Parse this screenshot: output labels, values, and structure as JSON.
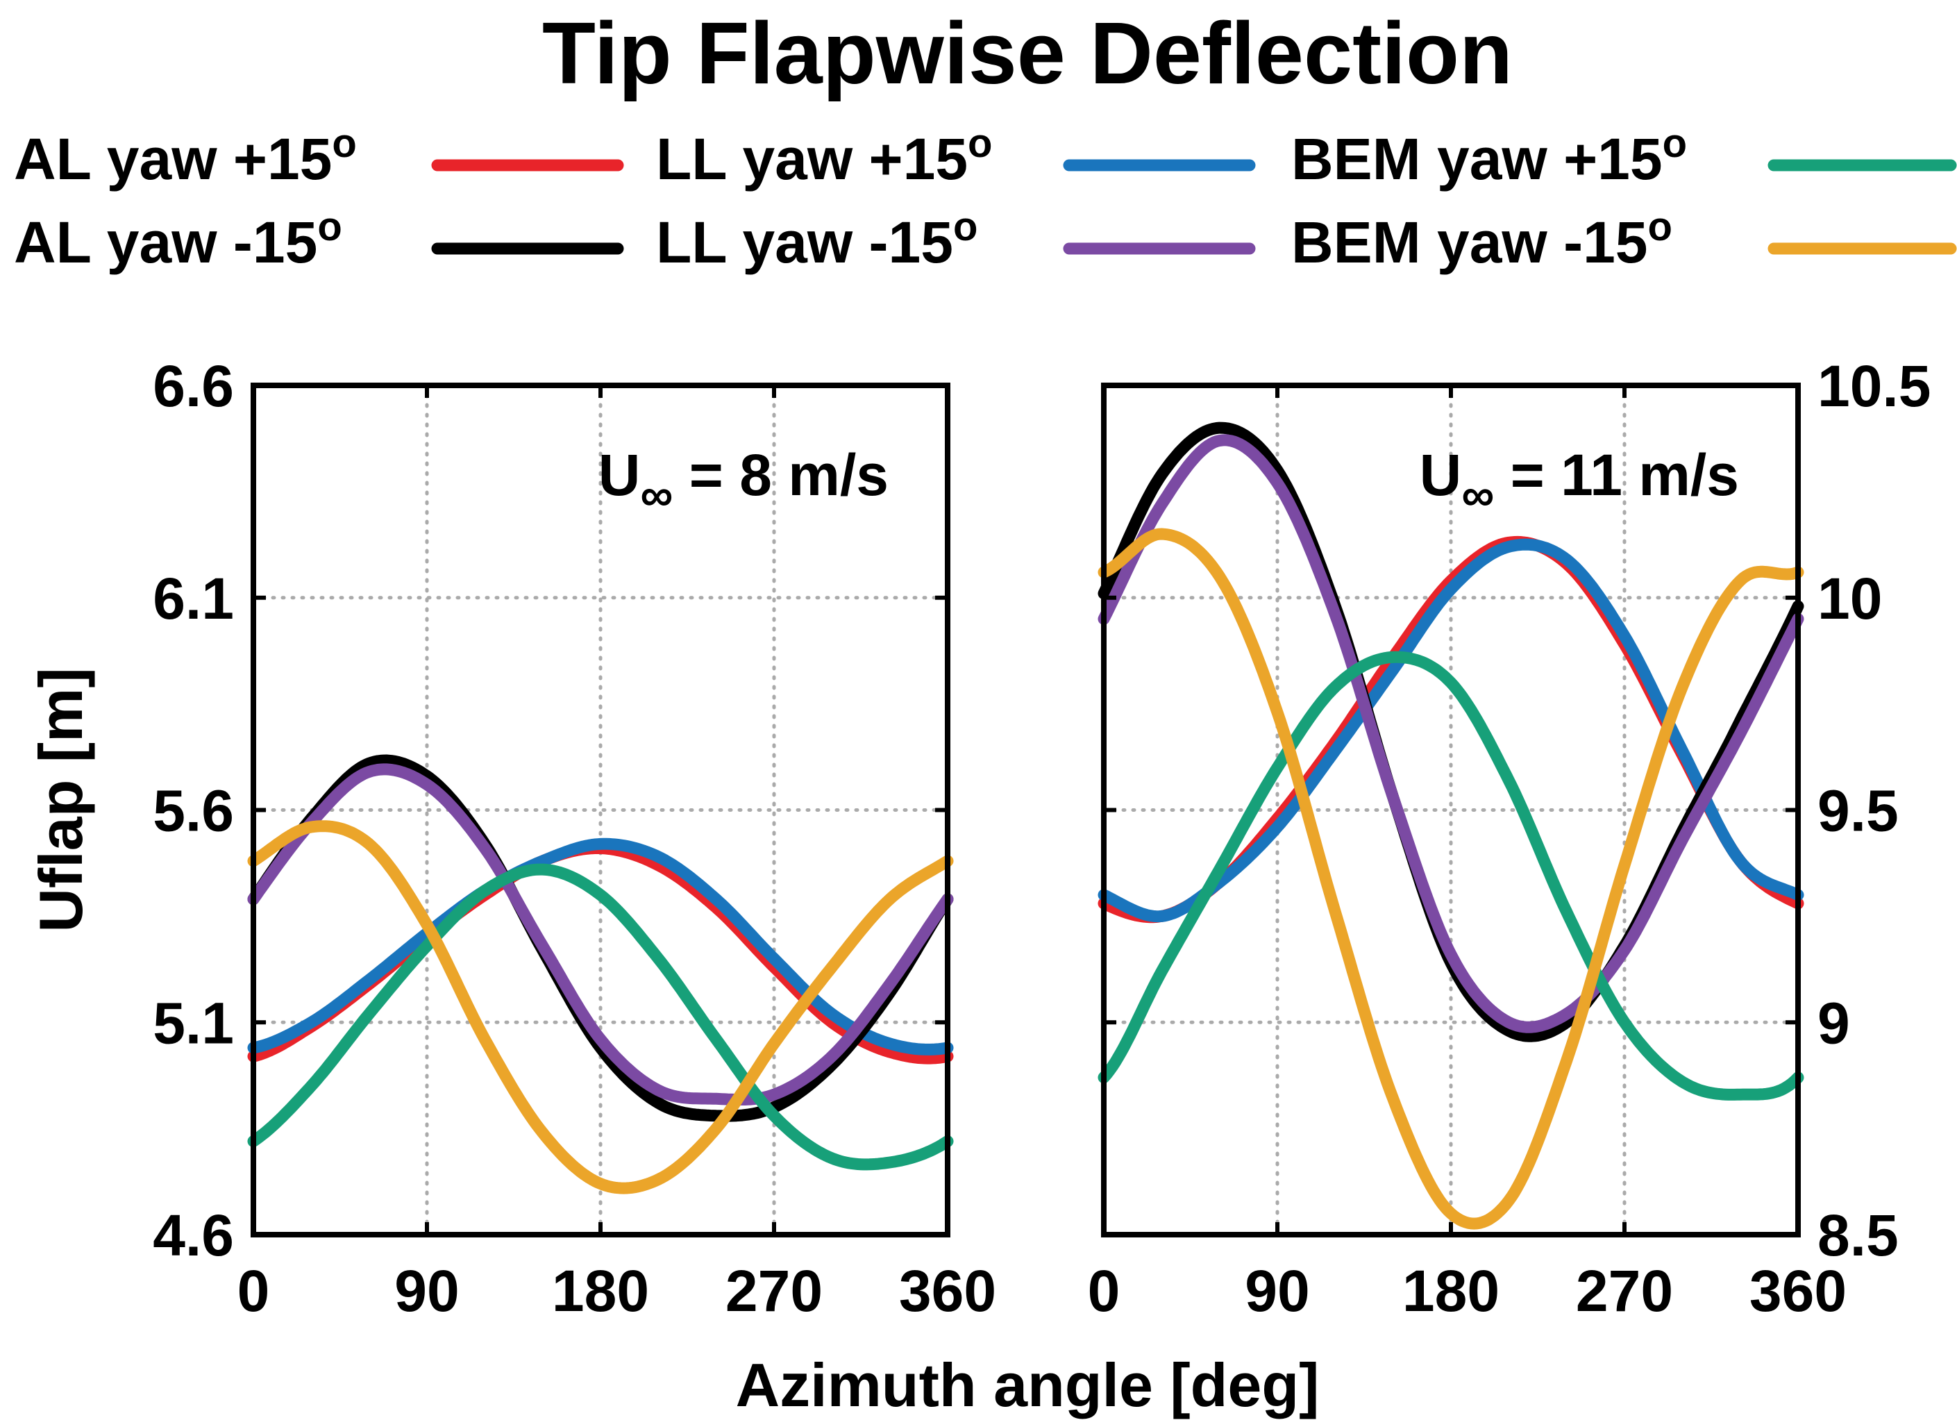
{
  "title": "Tip Flapwise Deflection",
  "xlabel": "Azimuth angle [deg]",
  "ylabel": "Uflap [m]",
  "legend": {
    "placement": "top",
    "entries": [
      {
        "key": "al_pos",
        "label": "AL yaw +15",
        "sup": "o",
        "color": "#e8242a"
      },
      {
        "key": "al_neg",
        "label": "AL yaw -15",
        "sup": "o",
        "color": "#000000"
      },
      {
        "key": "ll_pos",
        "label": "LL yaw +15",
        "sup": "o",
        "color": "#1a75bd"
      },
      {
        "key": "ll_neg",
        "label": "LL yaw -15",
        "sup": "o",
        "color": "#7b4aa3"
      },
      {
        "key": "bem_pos",
        "label": "BEM yaw +15",
        "sup": "o",
        "color": "#17a079"
      },
      {
        "key": "bem_neg",
        "label": "BEM yaw -15",
        "sup": "o",
        "color": "#eba52a"
      }
    ]
  },
  "chart_data": [
    {
      "type": "line",
      "annotation": {
        "main": "U",
        "sub": "∞",
        "rest": " = 8 m/s"
      },
      "xlim": [
        0,
        360
      ],
      "ylim": [
        4.6,
        6.6
      ],
      "xticks": [
        "0",
        "90",
        "180",
        "270",
        "360"
      ],
      "yticks": [
        "4.6",
        "5.1",
        "5.6",
        "6.1",
        "6.6"
      ],
      "y_axis_side": "left",
      "grid": true,
      "x": [
        0,
        30,
        60,
        90,
        120,
        150,
        180,
        210,
        240,
        270,
        300,
        330,
        360
      ],
      "series": [
        {
          "key": "al_pos",
          "values": [
            5.02,
            5.09,
            5.19,
            5.3,
            5.4,
            5.48,
            5.51,
            5.47,
            5.37,
            5.23,
            5.1,
            5.03,
            5.02
          ]
        },
        {
          "key": "ll_pos",
          "values": [
            5.04,
            5.1,
            5.2,
            5.31,
            5.41,
            5.48,
            5.52,
            5.49,
            5.39,
            5.25,
            5.12,
            5.05,
            5.04
          ]
        },
        {
          "key": "al_neg",
          "values": [
            5.39,
            5.58,
            5.71,
            5.68,
            5.52,
            5.27,
            5.04,
            4.91,
            4.88,
            4.9,
            5.0,
            5.17,
            5.39
          ]
        },
        {
          "key": "ll_neg",
          "values": [
            5.39,
            5.57,
            5.69,
            5.66,
            5.51,
            5.28,
            5.06,
            4.94,
            4.92,
            4.93,
            5.02,
            5.19,
            5.39
          ]
        },
        {
          "key": "bem_pos",
          "values": [
            4.82,
            4.95,
            5.12,
            5.28,
            5.41,
            5.46,
            5.4,
            5.25,
            5.06,
            4.88,
            4.78,
            4.77,
            4.82
          ]
        },
        {
          "key": "bem_neg",
          "values": [
            5.48,
            5.56,
            5.52,
            5.33,
            5.06,
            4.84,
            4.72,
            4.73,
            4.85,
            5.05,
            5.23,
            5.39,
            5.48
          ]
        }
      ]
    },
    {
      "type": "line",
      "annotation": {
        "main": "U",
        "sub": "∞",
        "rest": " = 11 m/s"
      },
      "xlim": [
        0,
        360
      ],
      "ylim": [
        8.5,
        10.5
      ],
      "xticks": [
        "0",
        "90",
        "180",
        "270",
        "360"
      ],
      "yticks": [
        "8.5",
        "9",
        "9.5",
        "10",
        "10.5"
      ],
      "y_axis_side": "right",
      "grid": true,
      "x": [
        0,
        30,
        60,
        90,
        120,
        150,
        180,
        210,
        240,
        270,
        300,
        330,
        360
      ],
      "series": [
        {
          "key": "al_pos",
          "values": [
            9.28,
            9.25,
            9.33,
            9.48,
            9.66,
            9.86,
            10.04,
            10.13,
            10.08,
            9.89,
            9.63,
            9.38,
            9.28
          ]
        },
        {
          "key": "ll_pos",
          "values": [
            9.3,
            9.25,
            9.33,
            9.46,
            9.64,
            9.83,
            10.02,
            10.12,
            10.09,
            9.91,
            9.64,
            9.38,
            9.3
          ]
        },
        {
          "key": "al_neg",
          "values": [
            10.01,
            10.29,
            10.4,
            10.3,
            9.98,
            9.53,
            9.14,
            8.98,
            9.0,
            9.18,
            9.45,
            9.71,
            9.98
          ]
        },
        {
          "key": "ll_neg",
          "values": [
            9.95,
            10.22,
            10.37,
            10.27,
            9.96,
            9.53,
            9.16,
            9.0,
            9.02,
            9.17,
            9.43,
            9.68,
            9.95
          ]
        },
        {
          "key": "bem_pos",
          "values": [
            8.87,
            9.12,
            9.36,
            9.6,
            9.79,
            9.86,
            9.8,
            9.57,
            9.26,
            9.0,
            8.86,
            8.83,
            8.87
          ]
        },
        {
          "key": "bem_neg",
          "values": [
            10.06,
            10.15,
            10.05,
            9.73,
            9.26,
            8.82,
            8.55,
            8.58,
            8.91,
            9.37,
            9.79,
            10.04,
            10.06
          ]
        }
      ]
    }
  ]
}
